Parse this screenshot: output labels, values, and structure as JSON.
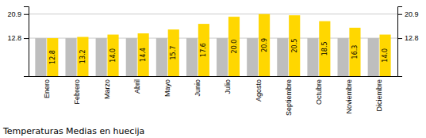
{
  "chart_data": {
    "type": "bar",
    "title": "Temperaturas Medias en huecija",
    "categories": [
      "Enero",
      "Febrero",
      "Marzo",
      "Abril",
      "Mayo",
      "Junio",
      "Julio",
      "Agosto",
      "Septiembre",
      "Octubre",
      "Noviembre",
      "Diciembre"
    ],
    "series": [
      {
        "color": "#BEBEBE",
        "values": [
          12.8,
          12.8,
          12.8,
          12.8,
          12.8,
          12.8,
          12.8,
          12.8,
          12.8,
          12.8,
          12.8,
          12.8
        ]
      },
      {
        "color": "#FFD700",
        "values": [
          12.8,
          13.2,
          14.0,
          14.4,
          15.7,
          17.6,
          20.0,
          20.9,
          20.5,
          18.5,
          16.3,
          14.0
        ],
        "value_labels": [
          "12.8",
          "13.2",
          "14.0",
          "14.4",
          "15.7",
          "17.6",
          "20.0",
          "20.9",
          "20.5",
          "18.5",
          "16.3",
          "14.0"
        ],
        "data_labels": true
      }
    ],
    "ylim": [
      0,
      23.5
    ],
    "yticks": [
      12.8,
      20.9
    ],
    "y2lim": [
      0,
      23.5
    ],
    "y2ticks": [
      12.8,
      20.9
    ],
    "grid": true
  }
}
